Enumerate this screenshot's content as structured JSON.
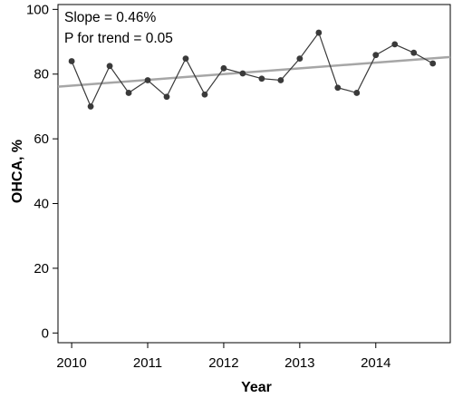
{
  "chart_data": {
    "type": "line",
    "xlabel": "Year",
    "ylabel": "OHCA, %",
    "xlim": [
      2009.82,
      2014.98
    ],
    "ylim": [
      -3,
      101.5
    ],
    "x_ticks": [
      2010,
      2011,
      2012,
      2013,
      2014
    ],
    "x_tick_labels": [
      "2010",
      "2011",
      "2012",
      "2013",
      "2014"
    ],
    "y_ticks": [
      0,
      20,
      40,
      60,
      80,
      100
    ],
    "y_tick_labels": [
      "0",
      "20",
      "40",
      "60",
      "80",
      "100"
    ],
    "grid": false,
    "legend": "none",
    "annotations": {
      "slope": "Slope = 0.46%",
      "p_trend": "P for trend = 0.05"
    },
    "series": [
      {
        "x": [
          2010.0,
          2010.25,
          2010.5,
          2010.75,
          2011.0,
          2011.25,
          2011.5,
          2011.75,
          2012.0,
          2012.25,
          2012.5,
          2012.75,
          2013.0,
          2013.25,
          2013.5,
          2013.75,
          2014.0,
          2014.25,
          2014.5,
          2014.75
        ],
        "values": [
          84.0,
          70.0,
          82.5,
          74.2,
          78.1,
          73.0,
          84.8,
          73.7,
          81.8,
          80.2,
          78.6,
          78.1,
          84.8,
          92.8,
          75.8,
          74.2,
          85.9,
          89.2,
          86.6,
          83.3
        ],
        "color": "#3a3a3a",
        "marker": "circle"
      }
    ],
    "trend_line": {
      "x": [
        2009.82,
        2014.98
      ],
      "values": [
        76.1,
        85.3
      ],
      "color": "#a6a6a6"
    }
  }
}
